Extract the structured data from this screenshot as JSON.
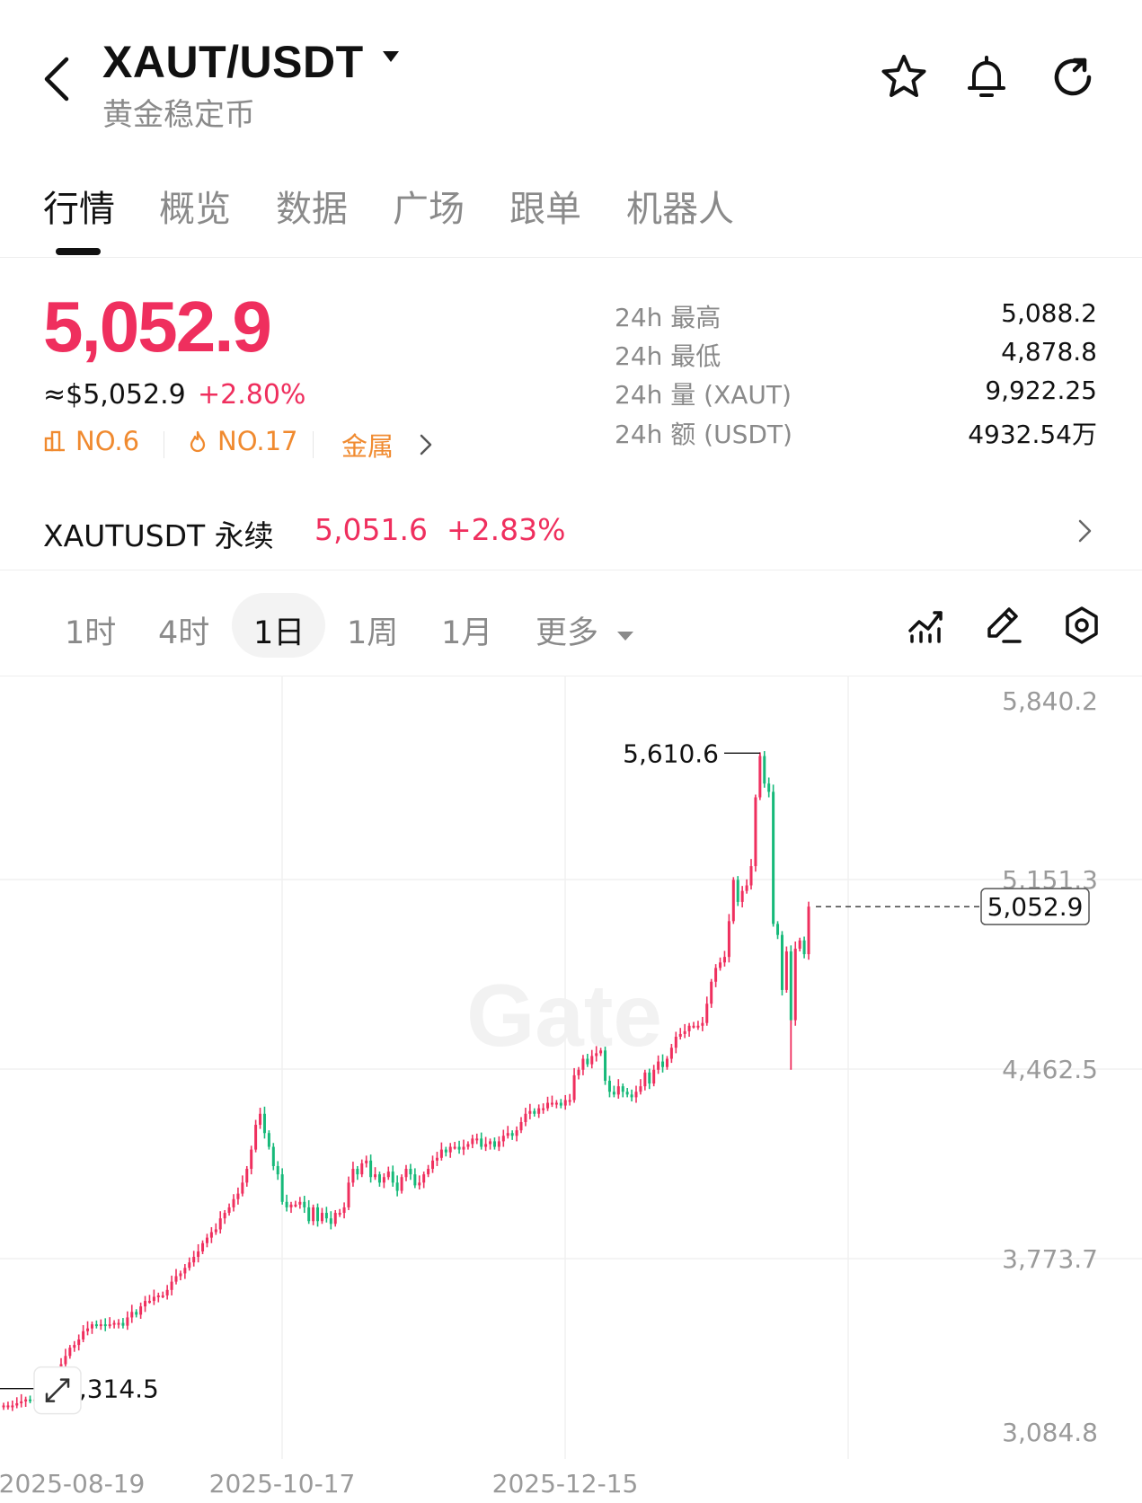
{
  "header": {
    "pair": "XAUT/USDT",
    "subtitle": "黄金稳定币",
    "icons": [
      "back-icon",
      "caret-down-icon",
      "star-icon",
      "bell-icon",
      "refresh-icon"
    ]
  },
  "tabs": [
    {
      "label": "行情",
      "active": true
    },
    {
      "label": "概览",
      "active": false
    },
    {
      "label": "数据",
      "active": false
    },
    {
      "label": "广场",
      "active": false
    },
    {
      "label": "跟单",
      "active": false
    },
    {
      "label": "机器人",
      "active": false
    }
  ],
  "ticker": {
    "price": "5,052.9",
    "approx": "≈$5,052.9",
    "change": "+2.80%",
    "rank1": "NO.6",
    "rank2": "NO.17",
    "category": "金属",
    "up_color": "#ef2f5e",
    "down_color": "#16b979",
    "rank_color": "#f08a2f"
  },
  "stats": [
    {
      "label": "24h  最高",
      "value": "5,088.2"
    },
    {
      "label": "24h  最低",
      "value": "4,878.8"
    },
    {
      "label": "24h  量 (XAUT)",
      "value": "9,922.25"
    },
    {
      "label": "24h  额 (USDT)",
      "value": "4932.54万"
    }
  ],
  "perpetual": {
    "name": "XAUTUSDT 永续",
    "price": "5,051.6",
    "change": "+2.83%"
  },
  "intervals": [
    {
      "label": "1时",
      "active": false
    },
    {
      "label": "4时",
      "active": false
    },
    {
      "label": "1日",
      "active": true
    },
    {
      "label": "1周",
      "active": false
    },
    {
      "label": "1月",
      "active": false
    },
    {
      "label": "更多",
      "active": false
    }
  ],
  "toolbar_icons": [
    "indicator-icon",
    "draw-pen-icon",
    "settings-hexagon-icon"
  ],
  "chart_data": {
    "type": "candlestick",
    "y_ticks": [
      "5,840.2",
      "5,151.3",
      "4,462.5",
      "3,773.7",
      "3,084.8"
    ],
    "ylim": [
      3084.8,
      5840.2
    ],
    "x_ticks": [
      "2025-08-19",
      "2025-10-17",
      "2025-12-15"
    ],
    "high_label": "5,610.6",
    "low_label": "3,314.5",
    "last_price": "5,052.9",
    "watermark": "Gate",
    "close_series": [
      3240,
      3240,
      3240,
      3248,
      3255,
      3262,
      3258,
      3262,
      3262,
      3270,
      3285,
      3300,
      3340,
      3390,
      3420,
      3450,
      3460,
      3480,
      3510,
      3520,
      3535,
      3530,
      3535,
      3530,
      3535,
      3540,
      3540,
      3530,
      3560,
      3580,
      3570,
      3600,
      3620,
      3620,
      3635,
      3640,
      3640,
      3660,
      3690,
      3710,
      3720,
      3740,
      3760,
      3780,
      3800,
      3830,
      3850,
      3870,
      3880,
      3920,
      3940,
      3960,
      3990,
      4010,
      4050,
      4100,
      4170,
      4260,
      4300,
      4230,
      4180,
      4110,
      4080,
      3980,
      3960,
      3970,
      3970,
      3980,
      3960,
      3910,
      3960,
      3910,
      3940,
      3920,
      3900,
      3940,
      3940,
      3960,
      4050,
      4100,
      4080,
      4120,
      4130,
      4070,
      4080,
      4050,
      4070,
      4090,
      4050,
      4020,
      4070,
      4100,
      4080,
      4040,
      4050,
      4080,
      4100,
      4130,
      4140,
      4170,
      4160,
      4180,
      4180,
      4170,
      4180,
      4190,
      4210,
      4210,
      4180,
      4190,
      4200,
      4180,
      4200,
      4220,
      4230,
      4220,
      4240,
      4270,
      4300,
      4310,
      4300,
      4320,
      4320,
      4340,
      4340,
      4340,
      4330,
      4350,
      4350,
      4440,
      4460,
      4500,
      4480,
      4510,
      4520,
      4530,
      4420,
      4380,
      4370,
      4400,
      4380,
      4370,
      4360,
      4380,
      4400,
      4450,
      4410,
      4460,
      4490,
      4470,
      4500,
      4540,
      4580,
      4590,
      4600,
      4620,
      4620,
      4620,
      4630,
      4700,
      4780,
      4830,
      4850,
      4870,
      5000,
      5150,
      5070,
      5110,
      5130,
      5200,
      5450,
      5600,
      5500,
      5470,
      4990,
      4950,
      4750,
      4890,
      4640,
      4900,
      4930,
      4880,
      5052.9
    ]
  }
}
